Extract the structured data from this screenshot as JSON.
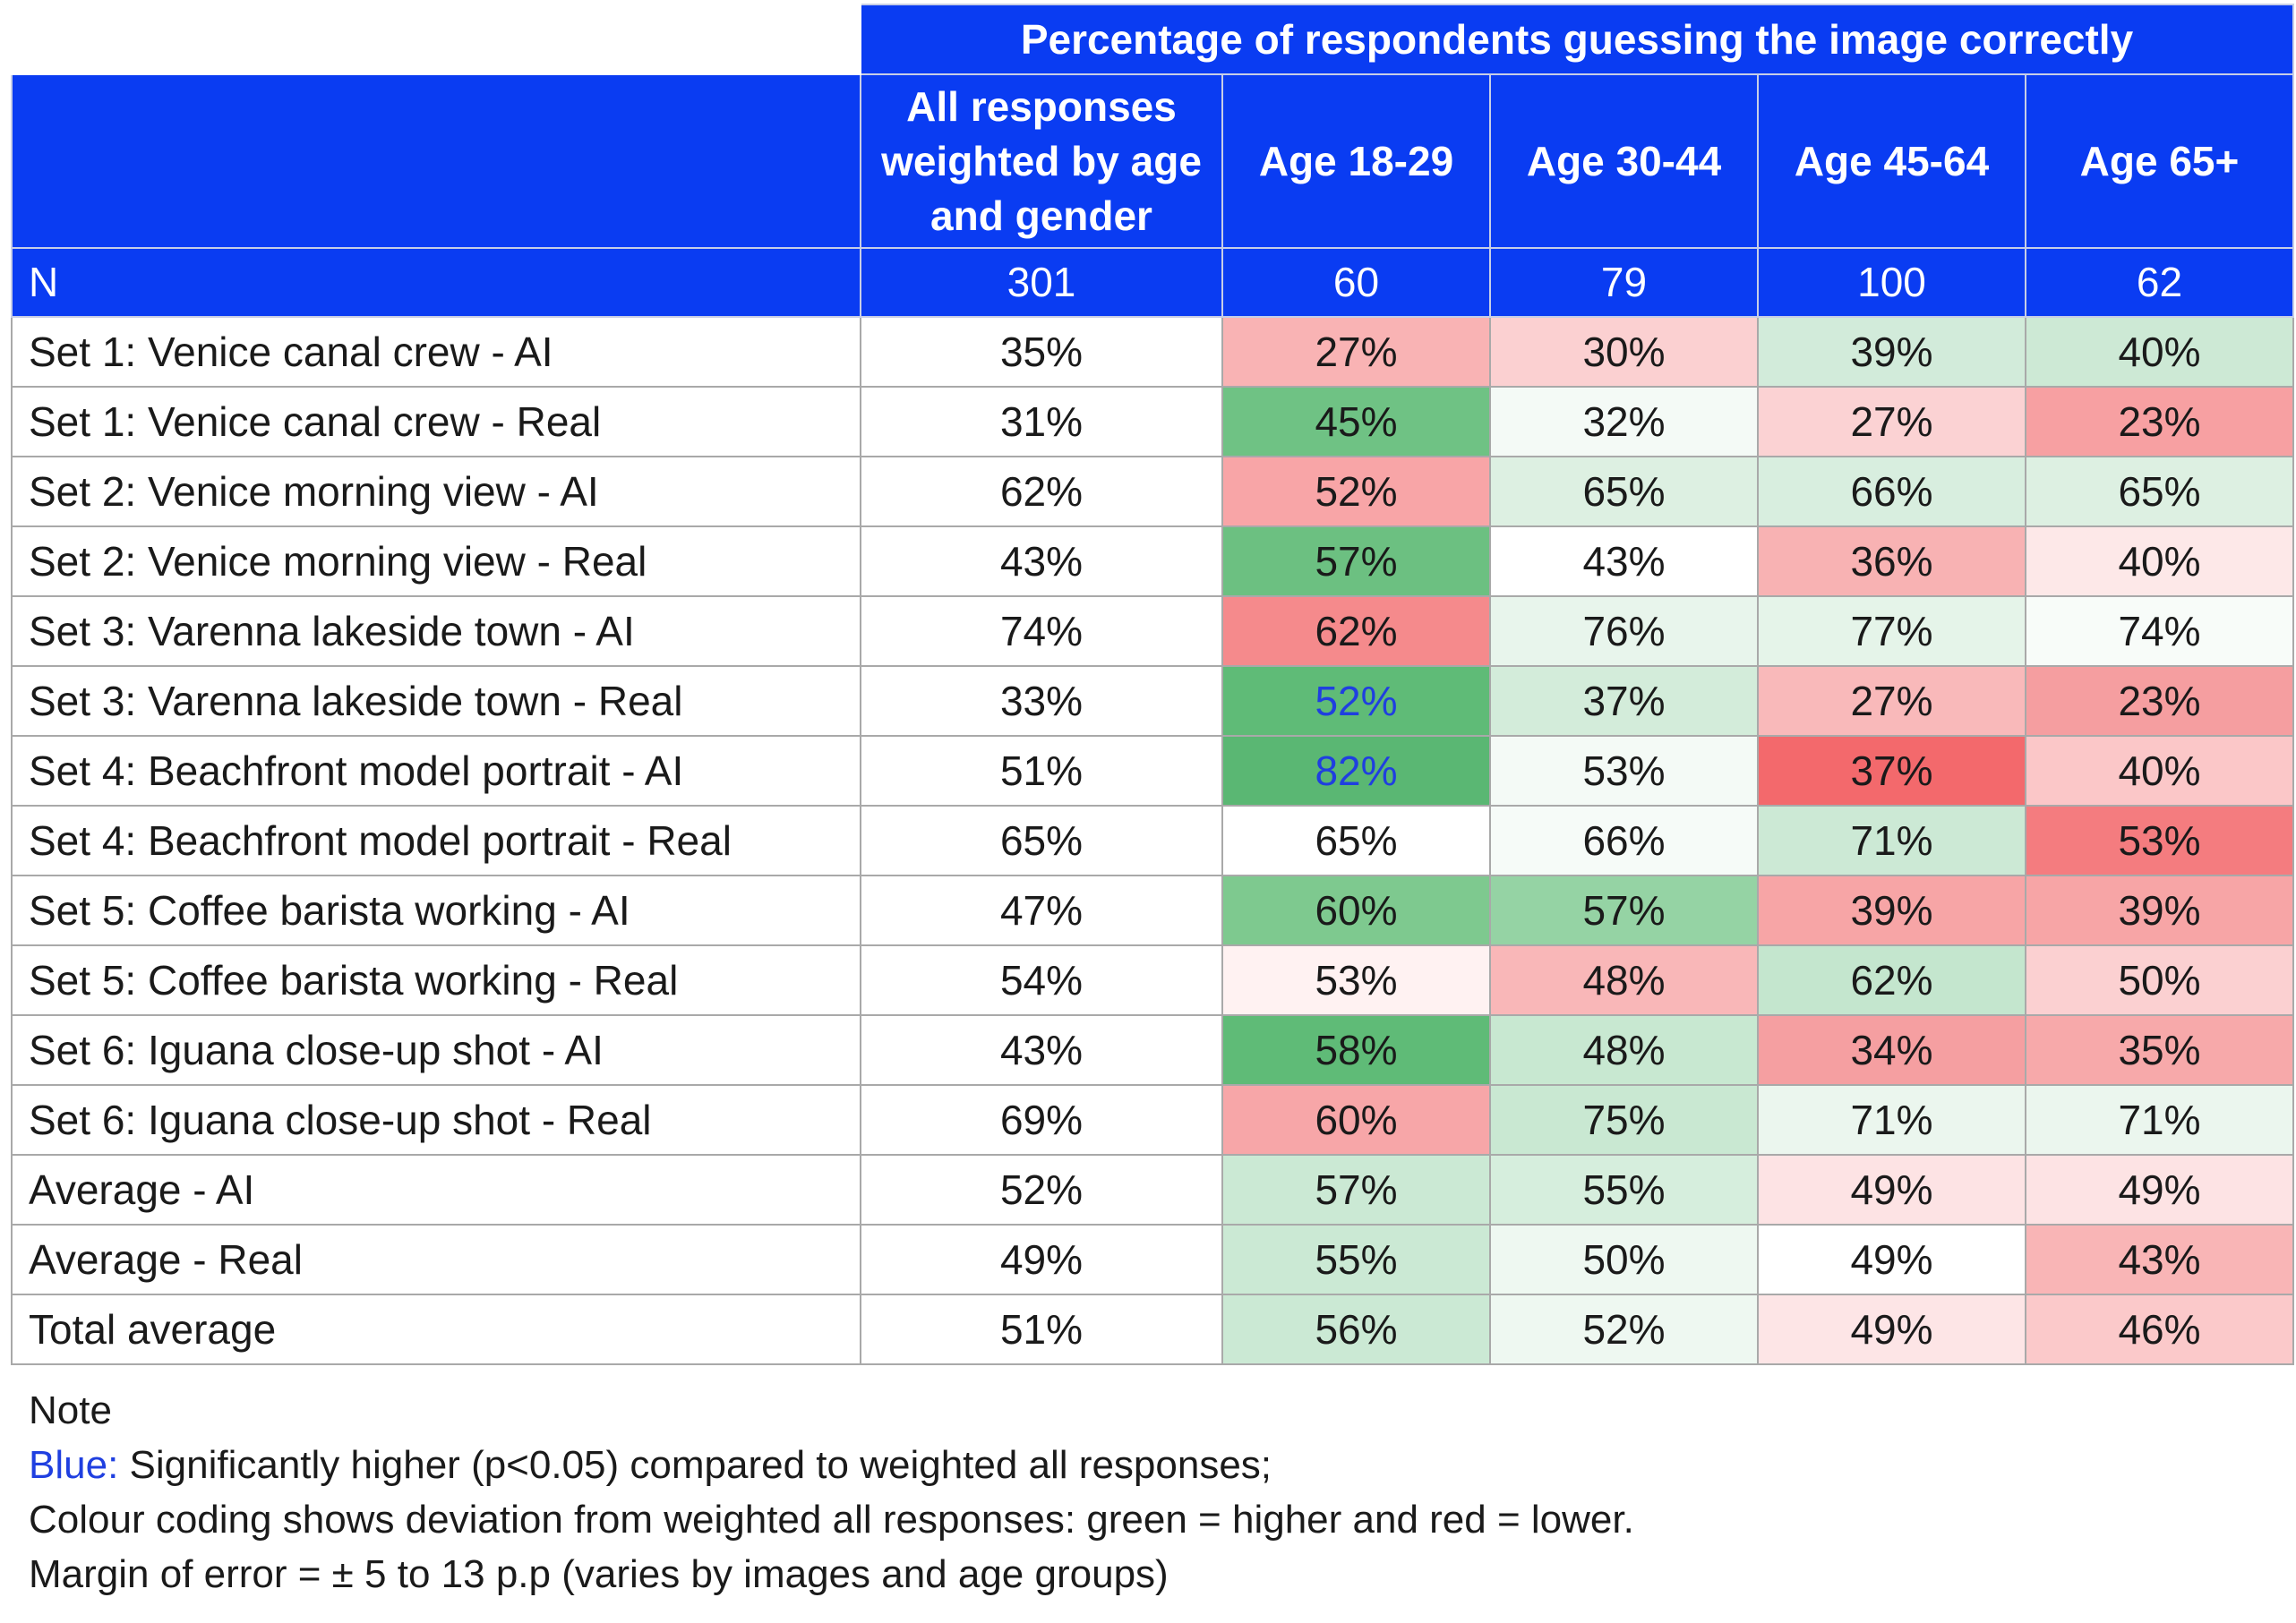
{
  "chart_data": {
    "type": "table",
    "title": "Percentage of respondents guessing the image correctly",
    "columns": [
      "",
      "All responses weighted by age and gender",
      "Age 18-29",
      "Age 30-44",
      "Age 45-64",
      "Age 65+"
    ],
    "n_row": {
      "label": "N",
      "values": [
        "301",
        "60",
        "79",
        "100",
        "62"
      ]
    },
    "rows": [
      {
        "label": "Set 1: Venice canal crew - AI",
        "values": [
          "35%",
          "27%",
          "30%",
          "39%",
          "40%"
        ]
      },
      {
        "label": "Set 1: Venice canal crew - Real",
        "values": [
          "31%",
          "45%",
          "32%",
          "27%",
          "23%"
        ]
      },
      {
        "label": "Set 2: Venice morning view - AI",
        "values": [
          "62%",
          "52%",
          "65%",
          "66%",
          "65%"
        ]
      },
      {
        "label": "Set 2: Venice morning view - Real",
        "values": [
          "43%",
          "57%",
          "43%",
          "36%",
          "40%"
        ]
      },
      {
        "label": "Set 3: Varenna lakeside town - AI",
        "values": [
          "74%",
          "62%",
          "76%",
          "77%",
          "74%"
        ]
      },
      {
        "label": "Set 3: Varenna lakeside town - Real",
        "values": [
          "33%",
          "52%",
          "37%",
          "27%",
          "23%"
        ]
      },
      {
        "label": "Set 4: Beachfront model portrait - AI",
        "values": [
          "51%",
          "82%",
          "53%",
          "37%",
          "40%"
        ]
      },
      {
        "label": "Set 4: Beachfront model portrait - Real",
        "values": [
          "65%",
          "65%",
          "66%",
          "71%",
          "53%"
        ]
      },
      {
        "label": "Set 5: Coffee barista working - AI",
        "values": [
          "47%",
          "60%",
          "57%",
          "39%",
          "39%"
        ]
      },
      {
        "label": "Set 5: Coffee barista working - Real",
        "values": [
          "54%",
          "53%",
          "48%",
          "62%",
          "50%"
        ]
      },
      {
        "label": "Set 6: Iguana close-up shot - AI",
        "values": [
          "43%",
          "58%",
          "48%",
          "34%",
          "35%"
        ]
      },
      {
        "label": "Set 6: Iguana close-up shot - Real",
        "values": [
          "69%",
          "60%",
          "75%",
          "71%",
          "71%"
        ]
      },
      {
        "label": "Average - AI",
        "values": [
          "52%",
          "57%",
          "55%",
          "49%",
          "49%"
        ]
      },
      {
        "label": "Average - Real",
        "values": [
          "49%",
          "55%",
          "50%",
          "49%",
          "43%"
        ]
      },
      {
        "label": "Total average",
        "values": [
          "51%",
          "56%",
          "52%",
          "49%",
          "46%"
        ]
      }
    ],
    "significant_cells": [
      {
        "row": 5,
        "col": 1
      },
      {
        "row": 6,
        "col": 1
      }
    ],
    "colors": {
      "header_bg": "#0a3cf2",
      "header_text": "#ffffff",
      "significant_text": "#1f3fe0",
      "green_strong": "#5cb874",
      "red_strong": "#f2676b"
    },
    "cell_shading": [
      [
        "#f9b3b4",
        "#fbd0d1",
        "#d2ebda",
        "#cde9d5"
      ],
      [
        "#6fc284",
        "#f4faf6",
        "#fbd2d3",
        "#f7a0a2"
      ],
      [
        "#f8a5a7",
        "#ddf0e2",
        "#d8eedf",
        "#ddf0e2"
      ],
      [
        "#6cc081",
        "#ffffff",
        "#f8b2b3",
        "#fde8e8"
      ],
      [
        "#f58a8c",
        "#e8f5ec",
        "#e5f4e9",
        "#f8fcf9"
      ],
      [
        "#5fbb77",
        "#d3ecda",
        "#f9b9ba",
        "#f59ea0"
      ],
      [
        "#5ab773",
        "#f4faf6",
        "#f3696c",
        "#fbc7c8"
      ],
      [
        "#ffffff",
        "#f6fbf8",
        "#cce9d5",
        "#f47c7f"
      ],
      [
        "#7ec98f",
        "#95d3a4",
        "#f7a5a6",
        "#f7a5a6"
      ],
      [
        "#fff2f2",
        "#f9b7b8",
        "#c4e6ce",
        "#fbd0d1"
      ],
      [
        "#5fbb77",
        "#c8e8d1",
        "#f59fa1",
        "#f7a9aa"
      ],
      [
        "#f7a6a8",
        "#c9e8d2",
        "#ebf6ee",
        "#ebf6ee"
      ],
      [
        "#cbe9d4",
        "#d6eedd",
        "#fde3e4",
        "#fde3e4"
      ],
      [
        "#cbe9d4",
        "#eef8f1",
        "#ffffff",
        "#f9b5b6"
      ],
      [
        "#cbe9d4",
        "#eef8f1",
        "#fde5e6",
        "#fbc9ca"
      ]
    ]
  },
  "notes": {
    "heading": "Note",
    "blue_label": "Blue:",
    "line1": " Significantly higher (p<0.05) compared to weighted all responses;",
    "line2": "Colour coding shows deviation from weighted all responses: green = higher and red = lower.",
    "line3": "Margin of error = ± 5 to 13 p.p (varies by images and age groups)"
  }
}
